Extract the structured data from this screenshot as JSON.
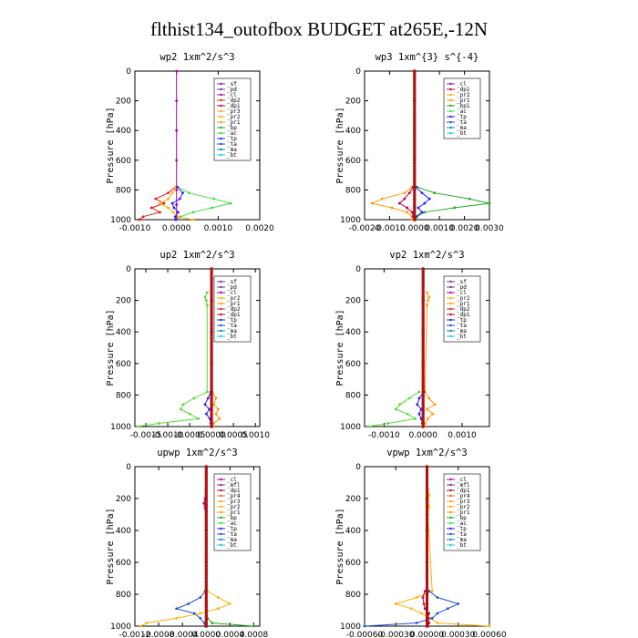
{
  "figure": {
    "title": "flthist134_outofbox  BUDGET at265E,-12N"
  },
  "colors": {
    "sf": "#7b2ca8",
    "pd": "#7b2ca8",
    "cl": "#b000b0",
    "mfl": "#7b2ca8",
    "dp1": "#c8003c",
    "dp2": "#e02020",
    "pr1": "#ff9a00",
    "pr2": "#ffb000",
    "pr3": "#ffa020",
    "pr4": "#ff6030",
    "bp": "#22aa22",
    "bs": "#22aa22",
    "ac": "#44dd44",
    "tp": "#2222ff",
    "ta": "#2050d0",
    "ma": "#0090b0",
    "bt": "#22ccdd",
    "dp2b": "#55dd33",
    "main": "#b01010"
  },
  "chart_data": [
    {
      "type": "line",
      "title": "wp2  1xm^2/s^3",
      "ylabel": "Pressure [hPa]",
      "xlabel": "",
      "xlim": [
        -0.001,
        0.002
      ],
      "ylim": [
        1000,
        0
      ],
      "xticks": [
        -0.001,
        0.0,
        0.001,
        0.002
      ],
      "xtick_labels": [
        "-0.0010",
        "0.0000",
        "0.0010",
        "0.0020"
      ],
      "yticks": [
        0,
        200,
        400,
        600,
        800,
        1000
      ],
      "ytick_labels": [
        "0",
        "200",
        "400",
        "600",
        "800",
        "1000"
      ],
      "legend_position": "top-right",
      "legend": [
        "_sf",
        "_pd",
        "_cl",
        "_dp2",
        "_dp1",
        "_pr3",
        "_pr2",
        "_pr1",
        "_bp",
        "_ac",
        "_tp",
        "_ta",
        "_ma",
        "_bt"
      ],
      "series": [
        {
          "name": "_ac",
          "color_key": "ac",
          "y": [
            780,
            820,
            860,
            890,
            920,
            950,
            980,
            1000
          ],
          "x": [
            2e-05,
            0.0003,
            0.0009,
            0.0013,
            0.00085,
            0.0004,
            0.0001,
            2e-05
          ]
        },
        {
          "name": "_dp1",
          "color_key": "dp2",
          "y": [
            780,
            820,
            860,
            890,
            920,
            950,
            980,
            1000
          ],
          "x": [
            -2e-05,
            -0.0002,
            -0.0005,
            -0.0003,
            -0.0006,
            -0.0004,
            -0.0008,
            -0.0009
          ]
        },
        {
          "name": "_pr3",
          "color_key": "pr2",
          "y": [
            780,
            820,
            860,
            890,
            920,
            950,
            980,
            1000
          ],
          "x": [
            -2e-05,
            -0.0001,
            -0.0002,
            -0.0004,
            -0.0002,
            -8e-05,
            3e-05,
            0.0004
          ]
        },
        {
          "name": "_tp",
          "color_key": "tp",
          "y": [
            780,
            820,
            860,
            890,
            920,
            950,
            980,
            1000
          ],
          "x": [
            2e-05,
            0.00015,
            8e-05,
            -0.0001,
            -6e-05,
            4e-05,
            -3e-05,
            -3e-05
          ]
        },
        {
          "name": "_cl",
          "color_key": "cl",
          "y": [
            0,
            200,
            400,
            600,
            800,
            900,
            1000
          ],
          "x": [
            0,
            0,
            0,
            0,
            0,
            0,
            0
          ]
        }
      ]
    },
    {
      "type": "line",
      "title": "wp3  1xm^{3} s^{-4}",
      "ylabel": "Pressure [hPa]",
      "xlabel": "",
      "xlim": [
        -0.002,
        0.003
      ],
      "ylim": [
        1000,
        0
      ],
      "xticks": [
        -0.002,
        -0.001,
        0.0,
        0.001,
        0.002,
        0.003
      ],
      "xtick_labels": [
        "-0.0020",
        "-0.0010",
        "0.0000",
        "0.0010",
        "0.0020",
        "0.0030"
      ],
      "yticks": [
        0,
        200,
        400,
        600,
        800,
        1000
      ],
      "ytick_labels": [
        "0",
        "200",
        "400",
        "600",
        "800",
        "1000"
      ],
      "legend_position": "top-right",
      "legend": [
        "_cl",
        "_dp1",
        "_pr2",
        "_pr1",
        "_bp1",
        "_ac",
        "_tp",
        "_ta",
        "_ma",
        "_bt"
      ],
      "series": [
        {
          "name": "_ac",
          "color_key": "bp",
          "y": [
            780,
            820,
            860,
            890,
            920,
            950,
            980,
            1000
          ],
          "x": [
            0.0001,
            0.0008,
            0.0022,
            0.003,
            0.0016,
            0.0004,
            0.0001,
            5e-05
          ]
        },
        {
          "name": "_pr2",
          "color_key": "pr1",
          "y": [
            780,
            820,
            860,
            890,
            920,
            950,
            980,
            1000
          ],
          "x": [
            -0.0001,
            -0.0004,
            -0.0013,
            -0.0017,
            -0.0009,
            -0.0003,
            -0.0001,
            -0.0001
          ]
        },
        {
          "name": "_dp1",
          "color_key": "dp1",
          "y": [
            780,
            820,
            860,
            890,
            920,
            950,
            980,
            1000
          ],
          "x": [
            -5e-05,
            -0.0002,
            -0.0004,
            -0.0006,
            -0.0003,
            -0.0001,
            -5e-05,
            -2e-05
          ]
        },
        {
          "name": "_tp",
          "color_key": "tp",
          "y": [
            780,
            820,
            860,
            890,
            920,
            950,
            980,
            1000
          ],
          "x": [
            5e-05,
            0.0003,
            0.0006,
            0.0004,
            0.00015,
            0.0003,
            5e-05,
            2e-05
          ]
        },
        {
          "name": "_cl",
          "color_key": "main",
          "y": [
            0,
            200,
            400,
            600,
            800,
            1000
          ],
          "x": [
            0,
            0,
            0,
            0,
            0,
            0
          ]
        }
      ]
    },
    {
      "type": "line",
      "title": "up2  1xm^2/s^3",
      "ylabel": "Pressure [hPa]",
      "xlabel": "",
      "xlim": [
        -0.00175,
        0.0011
      ],
      "ylim": [
        1000,
        0
      ],
      "xticks": [
        -0.0015,
        -0.001,
        -0.0005,
        0.0,
        0.0005,
        0.001
      ],
      "xtick_labels": [
        "-0.0015",
        "-0.0010",
        "-0.0005",
        "0.0000",
        "0.0005",
        "0.0010"
      ],
      "yticks": [
        0,
        200,
        400,
        600,
        800,
        1000
      ],
      "ytick_labels": [
        "0",
        "200",
        "400",
        "600",
        "800",
        "1000"
      ],
      "legend_position": "top-right",
      "legend": [
        "_sf",
        "_pd",
        "_cl",
        "_pr2",
        "_pr1",
        "_dp2",
        "_dp1",
        "_tp",
        "_ta",
        "_ma",
        "_bt"
      ],
      "series": [
        {
          "name": "_dp2",
          "color_key": "dp2b",
          "y": [
            150,
            180,
            200,
            230,
            780,
            820,
            860,
            890,
            920,
            950,
            980,
            1000
          ],
          "x": [
            -0.0001,
            -0.00015,
            -0.00012,
            -0.0001,
            -0.0001,
            -0.0004,
            -0.00065,
            -0.0007,
            -0.0005,
            -0.0003,
            -0.0012,
            -0.0017
          ]
        },
        {
          "name": "_pr1",
          "color_key": "pr1",
          "y": [
            780,
            820,
            860,
            890,
            920,
            950,
            980,
            1000
          ],
          "x": [
            2e-05,
            0.0001,
            5e-05,
            0.00015,
            0.0001,
            0.00018,
            5e-05,
            3e-05
          ]
        },
        {
          "name": "_tp",
          "color_key": "tp",
          "y": [
            780,
            820,
            860,
            890,
            920,
            950,
            980,
            1000
          ],
          "x": [
            -2e-05,
            -8e-05,
            -0.00015,
            -5e-05,
            -0.00012,
            -4e-05,
            -2e-05,
            -1e-05
          ]
        },
        {
          "name": "_pd",
          "color_key": "main",
          "y": [
            0,
            200,
            400,
            600,
            800,
            1000
          ],
          "x": [
            0,
            0,
            0,
            0,
            0,
            0
          ]
        }
      ]
    },
    {
      "type": "line",
      "title": "vp2  1xm^2/s^3",
      "ylabel": "Pressure [hPa]",
      "xlabel": "",
      "xlim": [
        -0.0015,
        0.0017
      ],
      "ylim": [
        1000,
        0
      ],
      "xticks": [
        -0.001,
        0.0,
        0.001
      ],
      "xtick_labels": [
        "-0.0010",
        "0.0000",
        "0.0010"
      ],
      "yticks": [
        0,
        200,
        400,
        600,
        800,
        1000
      ],
      "ytick_labels": [
        "0",
        "200",
        "400",
        "600",
        "800",
        "1000"
      ],
      "legend_position": "top-right",
      "legend": [
        "_sf",
        "_pd",
        "_cl",
        "_pr2",
        "_pr1",
        "_dp2",
        "_dp1",
        "_tp",
        "_ta",
        "_ma",
        "_bt"
      ],
      "series": [
        {
          "name": "_dp2",
          "color_key": "dp2b",
          "y": [
            780,
            820,
            860,
            890,
            920,
            950,
            980,
            1000
          ],
          "x": [
            -0.0001,
            -0.00035,
            -0.0006,
            -0.0007,
            -0.0004,
            -0.0002,
            -0.0009,
            -0.0014
          ]
        },
        {
          "name": "_pr1",
          "color_key": "pr1",
          "y": [
            150,
            180,
            200,
            230,
            780,
            820,
            860,
            890,
            920,
            950,
            980,
            1000
          ],
          "x": [
            0.0001,
            0.00015,
            0.00012,
            0.0001,
            5e-05,
            0.00015,
            0.0003,
            0.0001,
            0.00025,
            0.00012,
            5e-05,
            3e-05
          ]
        },
        {
          "name": "_tp",
          "color_key": "tp",
          "y": [
            780,
            820,
            860,
            890,
            920,
            950,
            980,
            1000
          ],
          "x": [
            2e-05,
            -0.0001,
            -0.00015,
            -5e-05,
            -0.0001,
            -5e-05,
            -2e-05,
            -1e-05
          ]
        },
        {
          "name": "_pd",
          "color_key": "main",
          "y": [
            0,
            200,
            400,
            600,
            800,
            1000
          ],
          "x": [
            0,
            0,
            0,
            0,
            0,
            0
          ]
        }
      ]
    },
    {
      "type": "line",
      "title": "upwp  1xm^2/s^3",
      "ylabel": "Pressure [hPa]",
      "xlabel": "",
      "xlim": [
        -0.0012,
        0.0009
      ],
      "ylim": [
        1000,
        0
      ],
      "xticks": [
        -0.0012,
        -0.0008,
        -0.0004,
        0.0,
        0.0004,
        0.0008
      ],
      "xtick_labels": [
        "-0.0012",
        "-0.0008",
        "-0.0004",
        "0.0000",
        "0.0004",
        "0.0008"
      ],
      "yticks": [
        0,
        200,
        400,
        600,
        800,
        1000
      ],
      "ytick_labels": [
        "0",
        "200",
        "400",
        "600",
        "800",
        "1000"
      ],
      "legend_position": "top-right",
      "legend": [
        "_cl",
        "_mfl",
        "_dp1",
        "_pr4",
        "_pr3",
        "_pr2",
        "_pr1",
        "_bp",
        "_ac",
        "_tp",
        "_ta",
        "_ma",
        "_bt"
      ],
      "series": [
        {
          "name": "_pr2",
          "color_key": "pr2",
          "y": [
            780,
            820,
            860,
            890,
            920,
            950,
            980,
            1000
          ],
          "x": [
            2e-05,
            0.0002,
            0.0004,
            0.0002,
            -0.0001,
            -0.0005,
            -0.001,
            -0.0011
          ]
        },
        {
          "name": "_tp",
          "color_key": "ta",
          "y": [
            780,
            820,
            860,
            890,
            920,
            950,
            980,
            1000
          ],
          "x": [
            -2e-05,
            -0.0001,
            -0.0003,
            -0.0005,
            -0.0002,
            -0.0001,
            -3e-05,
            -2e-05
          ]
        },
        {
          "name": "_bp",
          "color_key": "bp",
          "y": [
            900,
            950,
            980,
            1000
          ],
          "x": [
            1e-05,
            2e-05,
            0.0001,
            0.0008
          ]
        },
        {
          "name": "_cl",
          "color_key": "cl",
          "y": [
            0,
            200,
            230,
            260,
            400,
            600,
            800,
            1000
          ],
          "x": [
            0,
            -2e-05,
            -4e-05,
            -2e-05,
            0,
            0,
            0,
            0
          ]
        },
        {
          "name": "_mfl",
          "color_key": "main",
          "y": [
            0,
            200,
            400,
            600,
            800,
            1000
          ],
          "x": [
            0,
            0,
            0,
            0,
            0,
            0
          ]
        }
      ]
    },
    {
      "type": "line",
      "title": "vpwp  1xm^2/s^3",
      "ylabel": "Pressure [hPa]",
      "xlabel": "",
      "xlim": [
        -0.0006,
        0.0006
      ],
      "ylim": [
        1000,
        0
      ],
      "xticks": [
        -0.0006,
        -0.0003,
        0.0,
        0.0003,
        0.0006
      ],
      "xtick_labels": [
        "-0.00060",
        "-0.00030",
        "0.00000",
        "0.00030",
        "0.00060"
      ],
      "yticks": [
        0,
        200,
        400,
        600,
        800,
        1000
      ],
      "ytick_labels": [
        "0",
        "200",
        "400",
        "600",
        "800",
        "1000"
      ],
      "legend_position": "top-right",
      "legend": [
        "_cl",
        "_mfl",
        "_dp1",
        "_pr4",
        "_pr3",
        "_pr2",
        "_pr1",
        "_bp",
        "_ac",
        "_tp",
        "_ta",
        "_ma",
        "_bt"
      ],
      "series": [
        {
          "name": "_pr1",
          "color_key": "pr2",
          "y": [
            140,
            180,
            220,
            250,
            300,
            780,
            820,
            860,
            890,
            920,
            950,
            980,
            1000
          ],
          "x": [
            1e-05,
            2e-05,
            1e-05,
            2e-05,
            1e-05,
            5e-05,
            -0.0001,
            -0.0003,
            -0.00015,
            -5e-05,
            3e-05,
            0.0001,
            0.0006
          ]
        },
        {
          "name": "_tp",
          "color_key": "ta",
          "y": [
            780,
            820,
            860,
            890,
            920,
            950,
            980,
            1000
          ],
          "x": [
            2e-05,
            0.0001,
            0.0003,
            0.0002,
            0.0001,
            5e-05,
            -0.0001,
            -0.0006
          ]
        },
        {
          "name": "_dp1",
          "color_key": "dp1",
          "y": [
            780,
            820,
            860,
            890,
            920,
            950,
            980,
            1000
          ],
          "x": [
            -2e-05,
            -4e-05,
            -3e-05,
            -2e-05,
            2e-05,
            1e-05,
            2e-05,
            1e-05
          ]
        },
        {
          "name": "_mfl",
          "color_key": "main",
          "y": [
            0,
            200,
            400,
            600,
            800,
            1000
          ],
          "x": [
            0,
            0,
            0,
            0,
            0,
            0
          ]
        }
      ]
    }
  ]
}
